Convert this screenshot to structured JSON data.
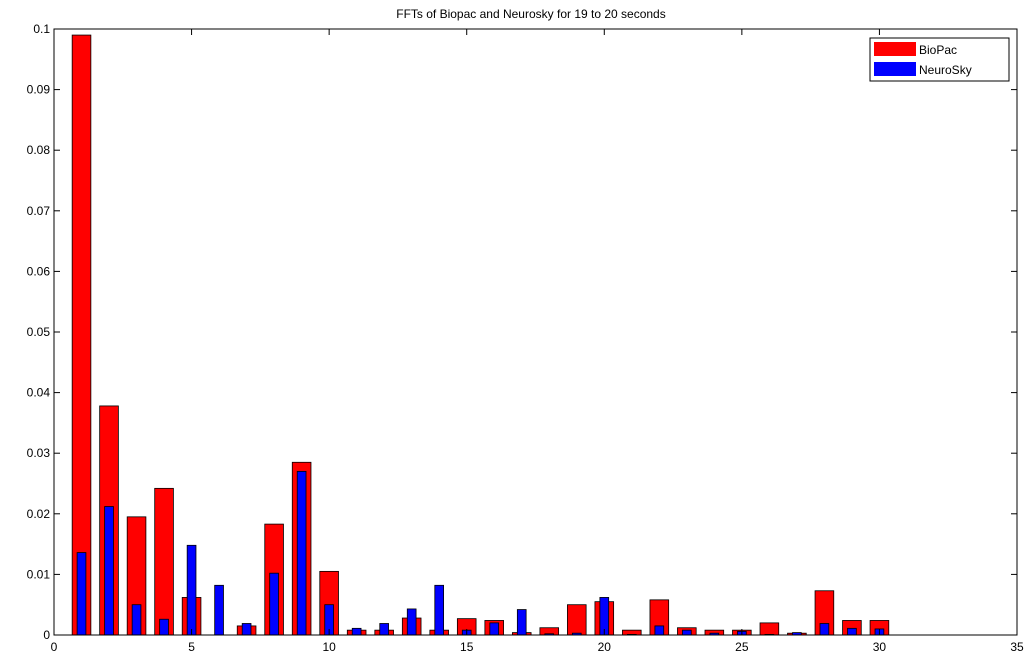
{
  "chart_data": {
    "type": "bar",
    "title": "FFTs of Biopac and Neurosky for 19 to 20 seconds",
    "xlabel": "",
    "ylabel": "",
    "xlim": [
      0,
      35
    ],
    "ylim": [
      0,
      0.1
    ],
    "xticks": [
      "0",
      "5",
      "10",
      "15",
      "20",
      "25",
      "30",
      "35"
    ],
    "yticks": [
      "0",
      "0.01",
      "0.02",
      "0.03",
      "0.04",
      "0.05",
      "0.06",
      "0.07",
      "0.08",
      "0.09",
      "0.1"
    ],
    "grid": false,
    "legend_position": "top-right",
    "x": [
      1,
      2,
      3,
      4,
      5,
      6,
      7,
      8,
      9,
      10,
      11,
      12,
      13,
      14,
      15,
      16,
      17,
      18,
      19,
      20,
      21,
      22,
      23,
      24,
      25,
      26,
      27,
      28,
      29,
      30
    ],
    "series": [
      {
        "name": "BioPac",
        "color": "#ff0000",
        "values": [
          0.099,
          0.0378,
          0.0195,
          0.0242,
          0.0062,
          0,
          0.0015,
          0.0183,
          0.0285,
          0.0105,
          0.0008,
          0.0008,
          0.0028,
          0.0008,
          0.0027,
          0.0024,
          0.0004,
          0.0012,
          0.005,
          0.0055,
          0.0008,
          0.0058,
          0.0012,
          0.0008,
          0.0008,
          0.002,
          0.0003,
          0.0073,
          0.0024,
          0.0024
        ]
      },
      {
        "name": "NeuroSky",
        "color": "#0000ff",
        "values": [
          0.0136,
          0.0212,
          0.005,
          0.0026,
          0.0148,
          0.0082,
          0.0019,
          0.0102,
          0.027,
          0.005,
          0.0011,
          0.0019,
          0.0043,
          0.0082,
          0.0008,
          0.002,
          0.0042,
          0.0002,
          0.0003,
          0.0062,
          0.0001,
          0.0015,
          0.0008,
          0.0003,
          0.0006,
          0.0001,
          0.0004,
          0.0019,
          0.0011,
          0.001
        ]
      }
    ]
  }
}
